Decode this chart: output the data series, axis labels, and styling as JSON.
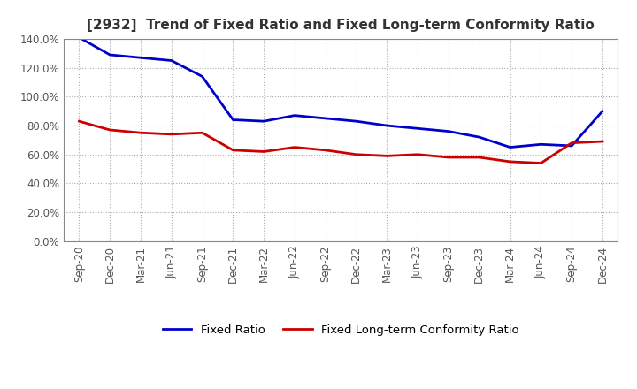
{
  "title": "[2932]  Trend of Fixed Ratio and Fixed Long-term Conformity Ratio",
  "title_color": "#333333",
  "background_color": "#ffffff",
  "grid_color": "#aaaaaa",
  "xlabels": [
    "Sep-20",
    "Dec-20",
    "Mar-21",
    "Jun-21",
    "Sep-21",
    "Dec-21",
    "Mar-22",
    "Jun-22",
    "Sep-22",
    "Dec-22",
    "Mar-23",
    "Jun-23",
    "Sep-23",
    "Dec-23",
    "Mar-24",
    "Jun-24",
    "Sep-24",
    "Dec-24"
  ],
  "fixed_ratio": [
    141.0,
    129.0,
    127.0,
    125.0,
    114.0,
    84.0,
    83.0,
    87.0,
    85.0,
    83.0,
    80.0,
    78.0,
    76.0,
    72.0,
    65.0,
    67.0,
    66.0,
    90.0
  ],
  "fixed_lt_ratio": [
    83.0,
    77.0,
    75.0,
    74.0,
    75.0,
    63.0,
    62.0,
    65.0,
    63.0,
    60.0,
    59.0,
    60.0,
    58.0,
    58.0,
    55.0,
    54.0,
    68.0,
    69.0
  ],
  "ylim": [
    0.0,
    140.0
  ],
  "yticks": [
    0.0,
    20.0,
    40.0,
    60.0,
    80.0,
    100.0,
    120.0,
    140.0
  ],
  "fixed_ratio_color": "#0000cc",
  "fixed_lt_ratio_color": "#cc0000",
  "line_width": 2.0,
  "legend_fixed": "Fixed Ratio",
  "legend_lt": "Fixed Long-term Conformity Ratio"
}
